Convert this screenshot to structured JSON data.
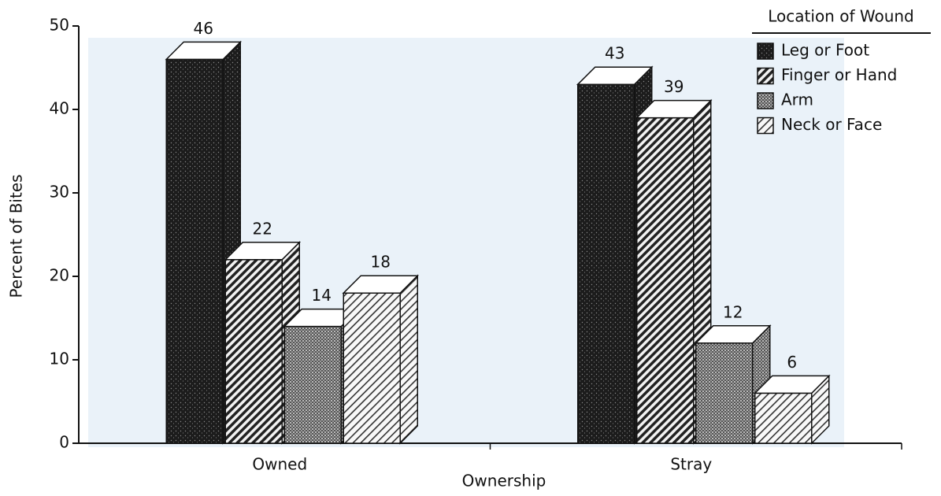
{
  "chart_data": {
    "type": "bar",
    "x_label": "Ownership",
    "y_label": "Percent of Bites",
    "categories": [
      "Owned",
      "Stray"
    ],
    "series": [
      {
        "name": "Leg or Foot",
        "color": "#1c1c1c",
        "pattern": "stipple",
        "values": [
          46,
          43
        ]
      },
      {
        "name": "Finger or Hand",
        "color": "#f2f2f2",
        "pattern": "hatch",
        "values": [
          22,
          39
        ]
      },
      {
        "name": "Arm",
        "color": "#6a6a6a",
        "pattern": "crosshatch",
        "values": [
          14,
          12
        ]
      },
      {
        "name": "Neck or Face",
        "color": "#f8f8f8",
        "pattern": "hatch-light",
        "values": [
          18,
          6
        ]
      }
    ],
    "legend_title": "Location of Wound",
    "legend": "upper right",
    "ylim": [
      0,
      50
    ],
    "yticks": [
      0,
      10,
      20,
      30,
      40,
      50
    ]
  }
}
